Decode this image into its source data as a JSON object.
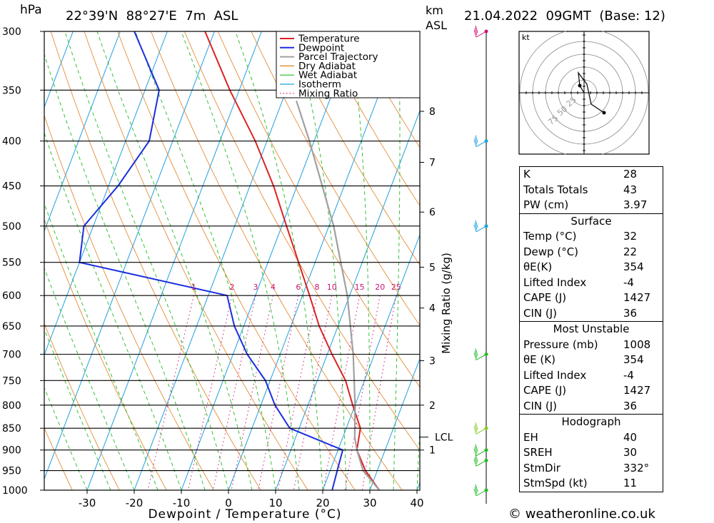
{
  "header": {
    "unit_hpa": "hPa",
    "location": "22°39'N  88°27'E  7m  ASL",
    "unit_km": "km",
    "unit_asl": "ASL",
    "datetime": "21.04.2022  09GMT  (Base: 12)"
  },
  "chart_data": {
    "type": "line",
    "xlabel": "Dewpoint / Temperature (°C)",
    "ylabel_right": "Mixing Ratio (g/kg)",
    "x_ticks": [
      -30,
      -20,
      -10,
      0,
      10,
      20,
      30,
      40
    ],
    "pressure_levels": [
      300,
      350,
      400,
      450,
      500,
      550,
      600,
      650,
      700,
      750,
      800,
      850,
      900,
      950,
      1000
    ],
    "km_ticks": [
      {
        "label": "8",
        "p": 370
      },
      {
        "label": "7",
        "p": 423
      },
      {
        "label": "6",
        "p": 482
      },
      {
        "label": "5",
        "p": 557
      },
      {
        "label": "4",
        "p": 620
      },
      {
        "label": "3",
        "p": 712
      },
      {
        "label": "2",
        "p": 800
      },
      {
        "label": "1",
        "p": 900
      }
    ],
    "lcl": {
      "label": "LCL",
      "p": 870
    },
    "mixing_ratio_labels": [
      "1",
      "2",
      "3",
      "4",
      "6",
      "8",
      "10",
      "15",
      "20",
      "25"
    ],
    "mixing_ratio_values": [
      1,
      2,
      3,
      4,
      6,
      8,
      10,
      15,
      20,
      25
    ],
    "legend": [
      "Temperature",
      "Dewpoint",
      "Parcel Trajectory",
      "Dry Adiabat",
      "Wet Adiabat",
      "Isotherm",
      "Mixing Ratio"
    ],
    "colors": {
      "temperature": "#dd2222",
      "dewpoint": "#1a2ee0",
      "parcel": "#a0a0a0",
      "dry_adiabat": "#e08020",
      "wet_adiabat": "#22bb22",
      "isotherm": "#1ea0e0",
      "mixing_ratio": "#cc1177"
    },
    "series": [
      {
        "name": "Temperature",
        "points": [
          [
            1000,
            32
          ],
          [
            950,
            27.5
          ],
          [
            900,
            24
          ],
          [
            850,
            23
          ],
          [
            800,
            19.5
          ],
          [
            750,
            16
          ],
          [
            700,
            11
          ],
          [
            650,
            6
          ],
          [
            600,
            1.5
          ],
          [
            550,
            -3.5
          ],
          [
            500,
            -9
          ],
          [
            450,
            -15
          ],
          [
            400,
            -22.5
          ],
          [
            350,
            -32
          ],
          [
            300,
            -42
          ]
        ]
      },
      {
        "name": "Dewpoint",
        "points": [
          [
            1000,
            22
          ],
          [
            950,
            21.5
          ],
          [
            900,
            21
          ],
          [
            850,
            8
          ],
          [
            800,
            3
          ],
          [
            750,
            -1
          ],
          [
            700,
            -7
          ],
          [
            650,
            -12
          ],
          [
            600,
            -16
          ],
          [
            550,
            -50
          ],
          [
            500,
            -52
          ],
          [
            450,
            -48
          ],
          [
            400,
            -45
          ],
          [
            350,
            -47
          ],
          [
            300,
            -57
          ]
        ]
      },
      {
        "name": "Parcel Trajectory",
        "points": [
          [
            1000,
            32
          ],
          [
            950,
            27
          ],
          [
            900,
            24
          ],
          [
            870,
            22.5
          ],
          [
            800,
            20
          ],
          [
            700,
            15.5
          ],
          [
            600,
            9.5
          ],
          [
            500,
            1
          ],
          [
            400,
            -11
          ],
          [
            360,
            -17
          ]
        ]
      }
    ],
    "wind_barbs_km": [
      {
        "p": 300,
        "color": "#cc1177"
      },
      {
        "p": 400,
        "color": "#1ea0e0"
      },
      {
        "p": 500,
        "color": "#1ea0e0"
      },
      {
        "p": 700,
        "color": "#22bb22"
      },
      {
        "p": 850,
        "color": "#88cc22"
      },
      {
        "p": 900,
        "color": "#22bb22"
      },
      {
        "p": 925,
        "color": "#22bb22"
      },
      {
        "p": 1000,
        "color": "#22bb22"
      }
    ],
    "hodograph": {
      "unit": "kt",
      "rings": [
        "25",
        "50",
        "75"
      ],
      "trace": [
        [
          0,
          0
        ],
        [
          -3,
          5
        ],
        [
          -4,
          14
        ],
        [
          2,
          6
        ],
        [
          5,
          -8
        ],
        [
          14,
          -14
        ]
      ]
    }
  },
  "indices": [
    {
      "label": "K",
      "value": "28"
    },
    {
      "label": "Totals Totals",
      "value": "43"
    },
    {
      "label": "PW (cm)",
      "value": "3.97"
    }
  ],
  "surface": {
    "title": "Surface",
    "rows": [
      {
        "label": "Temp (°C)",
        "value": "32"
      },
      {
        "label": "Dewp (°C)",
        "value": "22"
      },
      {
        "label": "θE(K)",
        "value": "354"
      },
      {
        "label": "Lifted Index",
        "value": "-4"
      },
      {
        "label": "CAPE (J)",
        "value": "1427"
      },
      {
        "label": "CIN (J)",
        "value": "36"
      }
    ]
  },
  "most_unstable": {
    "title": "Most Unstable",
    "rows": [
      {
        "label": "Pressure (mb)",
        "value": "1008"
      },
      {
        "label": "θE (K)",
        "value": "354"
      },
      {
        "label": "Lifted Index",
        "value": "-4"
      },
      {
        "label": "CAPE (J)",
        "value": "1427"
      },
      {
        "label": "CIN (J)",
        "value": "36"
      }
    ]
  },
  "hodograph_table": {
    "title": "Hodograph",
    "rows": [
      {
        "label": "EH",
        "value": "40"
      },
      {
        "label": "SREH",
        "value": "30"
      },
      {
        "label": "StmDir",
        "value": "332°"
      },
      {
        "label": "StmSpd (kt)",
        "value": "11"
      }
    ]
  },
  "credit": "© weatheronline.co.uk"
}
